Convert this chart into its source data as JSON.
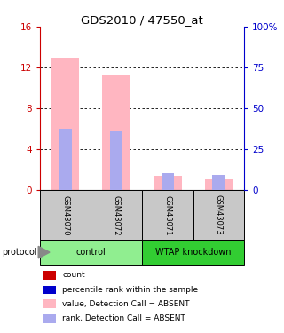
{
  "title": "GDS2010 / 47550_at",
  "samples": [
    "GSM43070",
    "GSM43072",
    "GSM43071",
    "GSM43073"
  ],
  "group_labels": [
    "control",
    "WTAP knockdown"
  ],
  "value_absent": [
    13.0,
    11.3,
    1.4,
    1.1
  ],
  "rank_absent": [
    37.5,
    36.0,
    10.5,
    9.5
  ],
  "left_ylim": [
    0,
    16
  ],
  "right_ylim": [
    0,
    100
  ],
  "left_yticks": [
    0,
    4,
    8,
    12,
    16
  ],
  "right_yticks": [
    0,
    25,
    50,
    75,
    100
  ],
  "right_yticklabels": [
    "0",
    "25",
    "50",
    "75",
    "100%"
  ],
  "left_color": "#CC0000",
  "right_color": "#0000CC",
  "pink_color": "#FFB6C1",
  "lightblue_color": "#AAAAEE",
  "red_color": "#CC0000",
  "blue_color": "#0000CC",
  "sample_bg": "#C8C8C8",
  "group_bg_control": "#90EE90",
  "group_bg_knockdown": "#32CD32",
  "legend_items": [
    [
      "#CC0000",
      "count"
    ],
    [
      "#0000CC",
      "percentile rank within the sample"
    ],
    [
      "#FFB6C1",
      "value, Detection Call = ABSENT"
    ],
    [
      "#AAAAEE",
      "rank, Detection Call = ABSENT"
    ]
  ]
}
